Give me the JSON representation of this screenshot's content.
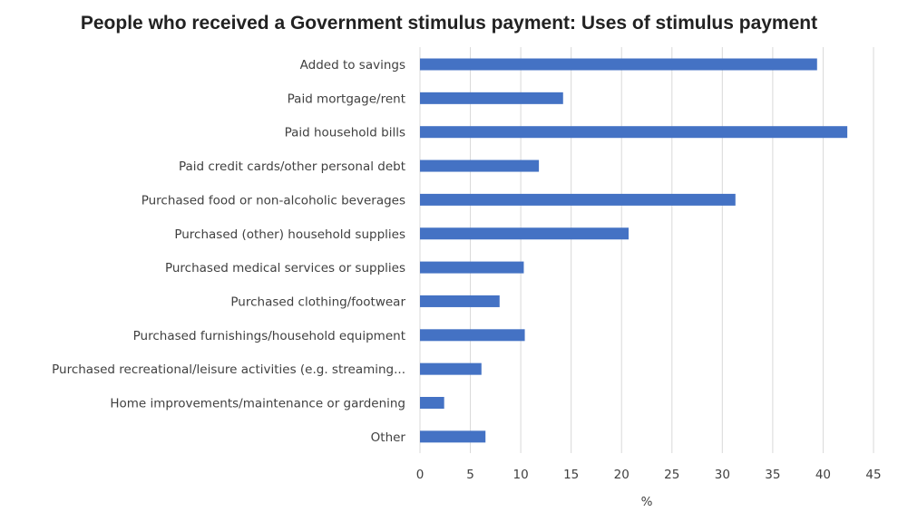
{
  "chart_data": {
    "type": "bar",
    "orientation": "horizontal",
    "title": "People who received a Government stimulus payment: Uses of stimulus payment",
    "xlabel": "%",
    "ylabel": "",
    "xlim": [
      0,
      45
    ],
    "xticks": [
      0,
      5,
      10,
      15,
      20,
      25,
      30,
      35,
      40,
      45
    ],
    "grid": "vertical",
    "legend": "none",
    "bar_color": "#4472C4",
    "categories": [
      "Added to savings",
      "Paid mortgage/rent",
      "Paid household bills",
      "Paid credit cards/other personal debt",
      "Purchased food or non-alcoholic beverages",
      "Purchased (other) household supplies",
      "Purchased medical services or supplies",
      "Purchased clothing/footwear",
      "Purchased furnishings/household equipment",
      "Purchased recreational/leisure activities (e.g. streaming...",
      "Home improvements/maintenance or gardening",
      "Other"
    ],
    "values": [
      39.4,
      14.2,
      42.4,
      11.8,
      31.3,
      20.7,
      10.3,
      7.9,
      10.4,
      6.1,
      2.4,
      6.5
    ]
  }
}
